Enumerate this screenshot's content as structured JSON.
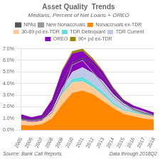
{
  "chart_data": {
    "type": "area",
    "title": "Asset Quality  Trends",
    "subtitle": "Medians, Percent of Net Loans + OREO",
    "annotations": [
      "Source: Bank Call Reports",
      "Data through 2018Q2"
    ],
    "x": [
      2005,
      2006,
      2007,
      2008,
      2009,
      2010,
      2011,
      2012,
      2013,
      2014,
      2015,
      2016,
      2017,
      2018
    ],
    "xlim": [
      2005,
      2018
    ],
    "xticks": [
      2005,
      2006,
      2007,
      2008,
      2009,
      2010,
      2011,
      2012,
      2013,
      2014,
      2015,
      2016,
      2017,
      2018
    ],
    "ylim": [
      0.0,
      0.07
    ],
    "yticks": [
      {
        "value": 0.0,
        "label": "0.0%"
      },
      {
        "value": 0.01,
        "label": "1.0%"
      },
      {
        "value": 0.02,
        "label": "2.0%"
      },
      {
        "value": 0.03,
        "label": "3.0%"
      },
      {
        "value": 0.04,
        "label": "4.0%"
      },
      {
        "value": 0.05,
        "label": "5.0%"
      },
      {
        "value": 0.06,
        "label": "6.0%"
      },
      {
        "value": 0.07,
        "label": "7.0%"
      }
    ],
    "stacked": true,
    "grid": "y",
    "legend": "top",
    "series": [
      {
        "name": "Nonaccruals ex-TDR",
        "type": "area",
        "color": "#FF8800",
        "values": [
          0.0045,
          0.004,
          0.005,
          0.01,
          0.022,
          0.032,
          0.034,
          0.031,
          0.025,
          0.019,
          0.014,
          0.012,
          0.01,
          0.009
        ]
      },
      {
        "name": "30-89 pd ex-TDR",
        "type": "area",
        "color": "#FFCC99",
        "values": [
          0.004,
          0.003,
          0.003,
          0.005,
          0.009,
          0.009,
          0.008,
          0.006,
          0.005,
          0.003,
          0.003,
          0.003,
          0.003,
          0.003
        ]
      },
      {
        "name": "TDR Delinquant",
        "type": "area",
        "color": "#66DDDD",
        "values": [
          0.0,
          0.0,
          0.0,
          0.001,
          0.002,
          0.003,
          0.004,
          0.003,
          0.003,
          0.002,
          0.001,
          0.001,
          0.001,
          0.0
        ]
      },
      {
        "name": "TDR Current",
        "type": "area",
        "color": "#C0C8E8",
        "values": [
          0.0,
          0.0,
          0.0,
          0.001,
          0.003,
          0.006,
          0.008,
          0.009,
          0.009,
          0.007,
          0.005,
          0.003,
          0.002,
          0.001
        ]
      },
      {
        "name": "OREO",
        "type": "area",
        "color": "#8800BB",
        "values": [
          0.005,
          0.004,
          0.005,
          0.009,
          0.015,
          0.016,
          0.014,
          0.011,
          0.008,
          0.005,
          0.003,
          0.002,
          0.002,
          0.002
        ]
      },
      {
        "name": "90+ pd ex-TDR",
        "type": "area",
        "color": "#998800",
        "values": [
          0.0002,
          0.0002,
          0.0002,
          0.0005,
          0.001,
          0.002,
          0.002,
          0.002,
          0.001,
          0.001,
          0.0005,
          0.0003,
          0.0002,
          0.0002
        ]
      },
      {
        "name": "NPAs",
        "type": "line",
        "color": "#555555",
        "values": [
          0.01,
          0.009,
          0.01,
          0.02,
          0.042,
          0.058,
          0.062,
          0.057,
          0.046,
          0.034,
          0.024,
          0.018,
          0.015,
          0.013
        ]
      },
      {
        "name": "New Nonaccruals",
        "type": "line",
        "color": "#999999",
        "values": [
          0.009,
          0.008,
          0.009,
          0.015,
          0.033,
          0.056,
          0.06,
          0.05,
          0.04,
          0.029,
          0.022,
          0.017,
          0.014,
          0.012
        ]
      }
    ]
  }
}
